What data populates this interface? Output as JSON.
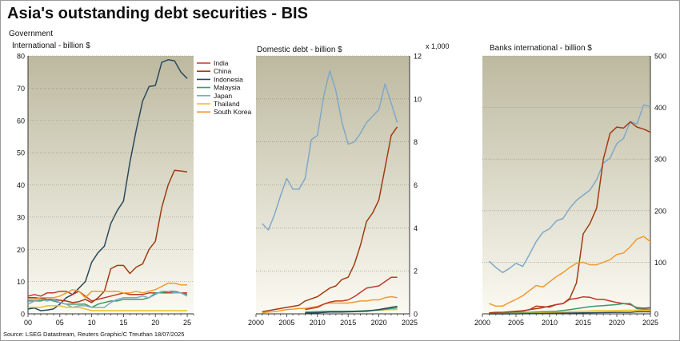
{
  "title": "Asia's outstanding debt securities - BIS",
  "source": "Source: LSEG Datastream, Reuters Graphic/C Treuthan 18/07/2025",
  "group_label": "Government",
  "colors": {
    "India": "#c0392b",
    "China": "#9e3d12",
    "Indonesia": "#2a4a5a",
    "Malaysia": "#3a9a6a",
    "Japan": "#7fa9c8",
    "Thailand": "#e8c020",
    "South Korea": "#f09a30"
  },
  "legend": [
    "India",
    "China",
    "Indonesia",
    "Malaysia",
    "Japan",
    "Thailand",
    "South Korea"
  ],
  "chart_data": [
    {
      "type": "line",
      "title": "International - billion $",
      "xlim": [
        0,
        26
      ],
      "ylim": [
        0,
        80
      ],
      "xticks": [
        0,
        5,
        10,
        15,
        20,
        25
      ],
      "xtick_labels": [
        "00",
        "05",
        "10",
        "15",
        "20",
        "25"
      ],
      "yticks": [
        0,
        10,
        20,
        30,
        40,
        50,
        60,
        70,
        80
      ],
      "ytick_labels": [
        "0",
        "10",
        "20",
        "30",
        "40",
        "50",
        "60",
        "70",
        "80"
      ],
      "y_axis_side": "left",
      "series": [
        {
          "name": "Indonesia",
          "x": [
            0,
            1,
            2,
            3,
            4,
            5,
            6,
            7,
            8,
            9,
            10,
            11,
            12,
            13,
            14,
            15,
            16,
            17,
            18,
            19,
            20,
            21,
            22,
            23,
            24,
            25
          ],
          "values": [
            1.5,
            1.8,
            1.0,
            1.2,
            1.5,
            3.0,
            5.0,
            6.0,
            8.0,
            10.0,
            16.0,
            19.0,
            21.0,
            28.0,
            32.0,
            35.0,
            47.0,
            57.0,
            66.0,
            70.5,
            70.8,
            78.0,
            78.8,
            78.5,
            75.0,
            73.0
          ]
        },
        {
          "name": "China",
          "x": [
            0,
            1,
            2,
            3,
            4,
            5,
            6,
            7,
            8,
            9,
            10,
            11,
            12,
            13,
            14,
            15,
            16,
            17,
            18,
            19,
            20,
            21,
            22,
            23,
            24,
            25
          ],
          "values": [
            5.0,
            5.0,
            4.8,
            4.5,
            4.5,
            4.2,
            4.0,
            3.5,
            3.8,
            4.5,
            3.5,
            5.0,
            7.0,
            14.0,
            15.0,
            15.0,
            12.5,
            14.5,
            15.5,
            20.0,
            22.5,
            33.0,
            40.0,
            44.5,
            44.3,
            44.0
          ]
        },
        {
          "name": "India",
          "x": [
            0,
            1,
            2,
            3,
            4,
            5,
            6,
            7,
            8,
            9,
            10,
            11,
            12,
            13,
            14,
            15,
            16,
            17,
            18,
            19,
            20,
            21,
            22,
            23,
            24,
            25
          ],
          "values": [
            5.5,
            6.0,
            5.5,
            6.5,
            6.5,
            7.0,
            7.0,
            6.0,
            7.0,
            5.5,
            4.0,
            4.5,
            5.0,
            5.5,
            6.0,
            6.5,
            6.0,
            6.0,
            6.0,
            6.5,
            6.5,
            6.5,
            6.5,
            6.5,
            6.5,
            6.5
          ]
        },
        {
          "name": "South Korea",
          "x": [
            0,
            1,
            2,
            3,
            4,
            5,
            6,
            7,
            8,
            9,
            10,
            11,
            12,
            13,
            14,
            15,
            16,
            17,
            18,
            19,
            20,
            21,
            22,
            23,
            24,
            25
          ],
          "values": [
            4.5,
            4.5,
            5.0,
            5.0,
            5.0,
            5.5,
            6.5,
            7.5,
            7.0,
            5.0,
            7.0,
            7.0,
            7.0,
            7.0,
            7.0,
            6.5,
            6.5,
            7.0,
            6.5,
            7.0,
            7.5,
            8.5,
            9.5,
            9.5,
            9.0,
            9.0
          ]
        },
        {
          "name": "Malaysia",
          "x": [
            0,
            1,
            2,
            3,
            4,
            5,
            6,
            7,
            8,
            9,
            10,
            11,
            12,
            13,
            14,
            15,
            16,
            17,
            18,
            19,
            20,
            21,
            22,
            23,
            24,
            25
          ],
          "values": [
            4.0,
            4.0,
            4.0,
            4.5,
            4.0,
            3.5,
            3.0,
            3.0,
            3.0,
            3.0,
            2.0,
            3.0,
            3.5,
            4.0,
            4.0,
            4.5,
            4.5,
            4.5,
            4.5,
            5.0,
            6.5,
            6.5,
            7.0,
            7.0,
            6.5,
            6.0
          ]
        },
        {
          "name": "Japan",
          "x": [
            0,
            1,
            2,
            3,
            4,
            5,
            6,
            7,
            8,
            9,
            10,
            11,
            12,
            13,
            14,
            15,
            16,
            17,
            18,
            19,
            20,
            21,
            22,
            23,
            24,
            25
          ],
          "values": [
            3.0,
            4.0,
            4.5,
            4.0,
            4.5,
            3.5,
            3.0,
            2.0,
            2.5,
            2.5,
            2.0,
            2.0,
            2.0,
            3.5,
            4.5,
            5.0,
            5.0,
            5.0,
            5.5,
            5.0,
            6.0,
            7.0,
            7.0,
            6.5,
            6.5,
            5.5
          ]
        },
        {
          "name": "Thailand",
          "x": [
            0,
            1,
            2,
            3,
            4,
            5,
            6,
            7,
            8,
            9,
            10,
            11,
            12,
            13,
            14,
            15,
            16,
            17,
            18,
            19,
            20,
            21,
            22,
            23,
            24,
            25
          ],
          "values": [
            2.0,
            2.0,
            2.0,
            2.5,
            2.5,
            2.5,
            2.0,
            2.0,
            2.0,
            1.5,
            1.0,
            1.0,
            1.0,
            1.0,
            1.0,
            1.0,
            1.0,
            1.0,
            1.0,
            1.0,
            1.0,
            1.0,
            1.0,
            1.0,
            1.0,
            1.0
          ]
        }
      ]
    },
    {
      "type": "line",
      "title": "Domestic debt - billion $",
      "unit_note": "x 1,000",
      "xlim": [
        2000,
        2025
      ],
      "ylim": [
        0,
        12
      ],
      "xticks": [
        2000,
        2005,
        2010,
        2015,
        2020,
        2025
      ],
      "xtick_labels": [
        "2000",
        "2005",
        "2010",
        "2015",
        "2020",
        "2025"
      ],
      "yticks": [
        0,
        2,
        4,
        6,
        8,
        10,
        12
      ],
      "ytick_labels": [
        "0",
        "2",
        "4",
        "6",
        "8",
        "10",
        "12"
      ],
      "y_axis_side": "right",
      "series": [
        {
          "name": "Japan",
          "x": [
            2001,
            2002,
            2003,
            2004,
            2005,
            2006,
            2007,
            2008,
            2009,
            2010,
            2011,
            2012,
            2013,
            2014,
            2015,
            2016,
            2017,
            2018,
            2019,
            2020,
            2021,
            2022,
            2023
          ],
          "values": [
            4.2,
            3.9,
            4.6,
            5.5,
            6.3,
            5.8,
            5.8,
            6.3,
            8.1,
            8.3,
            10.1,
            11.3,
            10.4,
            8.9,
            7.9,
            8.0,
            8.4,
            8.9,
            9.2,
            9.5,
            10.7,
            9.8,
            8.9
          ]
        },
        {
          "name": "China",
          "x": [
            2001,
            2002,
            2003,
            2004,
            2005,
            2006,
            2007,
            2008,
            2009,
            2010,
            2011,
            2012,
            2013,
            2014,
            2015,
            2016,
            2017,
            2018,
            2019,
            2020,
            2021,
            2022,
            2023
          ],
          "values": [
            0.1,
            0.15,
            0.2,
            0.25,
            0.3,
            0.35,
            0.4,
            0.6,
            0.7,
            0.8,
            1.0,
            1.2,
            1.3,
            1.6,
            1.7,
            2.3,
            3.2,
            4.3,
            4.7,
            5.3,
            6.8,
            8.3,
            8.7
          ]
        },
        {
          "name": "South Korea",
          "x": [
            2001,
            2002,
            2003,
            2004,
            2005,
            2006,
            2007,
            2008,
            2009,
            2010,
            2011,
            2012,
            2013,
            2014,
            2015,
            2016,
            2017,
            2018,
            2019,
            2020,
            2021,
            2022,
            2023
          ],
          "values": [
            0.05,
            0.08,
            0.1,
            0.15,
            0.2,
            0.22,
            0.25,
            0.25,
            0.3,
            0.35,
            0.45,
            0.5,
            0.5,
            0.5,
            0.5,
            0.55,
            0.6,
            0.6,
            0.65,
            0.65,
            0.75,
            0.8,
            0.75
          ]
        },
        {
          "name": "India",
          "x": [
            2008,
            2009,
            2010,
            2011,
            2012,
            2013,
            2014,
            2015,
            2016,
            2017,
            2018,
            2019,
            2020,
            2021,
            2022,
            2023
          ],
          "values": [
            0.2,
            0.25,
            0.3,
            0.45,
            0.55,
            0.6,
            0.6,
            0.65,
            0.8,
            1.0,
            1.2,
            1.25,
            1.3,
            1.5,
            1.7,
            1.7
          ]
        },
        {
          "name": "Thailand",
          "x": [
            2008,
            2010,
            2012,
            2014,
            2016,
            2018,
            2020,
            2022,
            2023
          ],
          "values": [
            0.05,
            0.08,
            0.1,
            0.12,
            0.12,
            0.15,
            0.18,
            0.2,
            0.2
          ]
        },
        {
          "name": "Malaysia",
          "x": [
            2008,
            2010,
            2012,
            2014,
            2016,
            2018,
            2020,
            2022,
            2023
          ],
          "values": [
            0.08,
            0.1,
            0.12,
            0.12,
            0.12,
            0.15,
            0.18,
            0.25,
            0.28
          ]
        },
        {
          "name": "Indonesia",
          "x": [
            2008,
            2010,
            2012,
            2014,
            2016,
            2018,
            2020,
            2022,
            2023
          ],
          "values": [
            0.05,
            0.05,
            0.08,
            0.08,
            0.1,
            0.12,
            0.2,
            0.3,
            0.35
          ]
        }
      ]
    },
    {
      "type": "line",
      "title": "Banks international - billion $",
      "xlim": [
        2000,
        2025
      ],
      "ylim": [
        0,
        500
      ],
      "xticks": [
        2000,
        2005,
        2010,
        2015,
        2020,
        2025
      ],
      "xtick_labels": [
        "2000",
        "2005",
        "2010",
        "2015",
        "2020",
        "2025"
      ],
      "yticks": [
        0,
        100,
        200,
        300,
        400,
        500
      ],
      "ytick_labels": [
        "0",
        "100",
        "200",
        "300",
        "400",
        "500"
      ],
      "y_axis_side": "right",
      "series": [
        {
          "name": "Japan",
          "x": [
            2001,
            2002,
            2003,
            2004,
            2005,
            2006,
            2007,
            2008,
            2009,
            2010,
            2011,
            2012,
            2013,
            2014,
            2015,
            2016,
            2017,
            2018,
            2019,
            2020,
            2021,
            2022,
            2023,
            2024,
            2025
          ],
          "values": [
            102,
            90,
            80,
            88,
            98,
            92,
            115,
            140,
            158,
            165,
            180,
            185,
            205,
            220,
            230,
            240,
            260,
            292,
            302,
            330,
            340,
            373,
            368,
            405,
            402
          ]
        },
        {
          "name": "China",
          "x": [
            2001,
            2002,
            2003,
            2004,
            2005,
            2006,
            2007,
            2008,
            2009,
            2010,
            2011,
            2012,
            2013,
            2014,
            2015,
            2016,
            2017,
            2018,
            2019,
            2020,
            2021,
            2022,
            2023,
            2024,
            2025
          ],
          "values": [
            2,
            3,
            3,
            4,
            5,
            6,
            8,
            10,
            12,
            15,
            18,
            20,
            30,
            60,
            155,
            175,
            205,
            300,
            350,
            362,
            360,
            372,
            362,
            358,
            352
          ]
        },
        {
          "name": "South Korea",
          "x": [
            2001,
            2002,
            2003,
            2004,
            2005,
            2006,
            2007,
            2008,
            2009,
            2010,
            2011,
            2012,
            2013,
            2014,
            2015,
            2016,
            2017,
            2018,
            2019,
            2020,
            2021,
            2022,
            2023,
            2024,
            2025
          ],
          "values": [
            20,
            15,
            15,
            22,
            28,
            35,
            45,
            55,
            52,
            62,
            72,
            80,
            90,
            98,
            100,
            95,
            95,
            100,
            105,
            115,
            118,
            130,
            145,
            150,
            140
          ]
        },
        {
          "name": "India",
          "x": [
            2001,
            2002,
            2003,
            2004,
            2005,
            2006,
            2007,
            2008,
            2009,
            2010,
            2011,
            2012,
            2013,
            2014,
            2015,
            2016,
            2017,
            2018,
            2019,
            2020,
            2021,
            2022,
            2023,
            2024,
            2025
          ],
          "values": [
            0,
            1,
            2,
            3,
            4,
            5,
            8,
            15,
            14,
            13,
            18,
            20,
            28,
            30,
            33,
            32,
            28,
            28,
            25,
            22,
            20,
            18,
            12,
            11,
            12
          ]
        },
        {
          "name": "Malaysia",
          "x": [
            2001,
            2003,
            2005,
            2007,
            2009,
            2011,
            2013,
            2014,
            2015,
            2016,
            2017,
            2018,
            2019,
            2020,
            2021,
            2022,
            2023,
            2024,
            2025
          ],
          "values": [
            0,
            1,
            2,
            3,
            4,
            5,
            8,
            10,
            12,
            14,
            15,
            16,
            17,
            18,
            20,
            20,
            10,
            9,
            9
          ]
        },
        {
          "name": "Thailand",
          "x": [
            2001,
            2003,
            2005,
            2007,
            2009,
            2011,
            2013,
            2015,
            2017,
            2019,
            2021,
            2023,
            2025
          ],
          "values": [
            0,
            0,
            1,
            1,
            2,
            3,
            4,
            5,
            6,
            6,
            7,
            7,
            7
          ]
        },
        {
          "name": "Indonesia",
          "x": [
            2001,
            2005,
            2010,
            2015,
            2020,
            2022,
            2023,
            2024,
            2025
          ],
          "values": [
            0,
            0,
            1,
            2,
            3,
            3,
            4,
            4,
            4
          ]
        }
      ]
    }
  ]
}
